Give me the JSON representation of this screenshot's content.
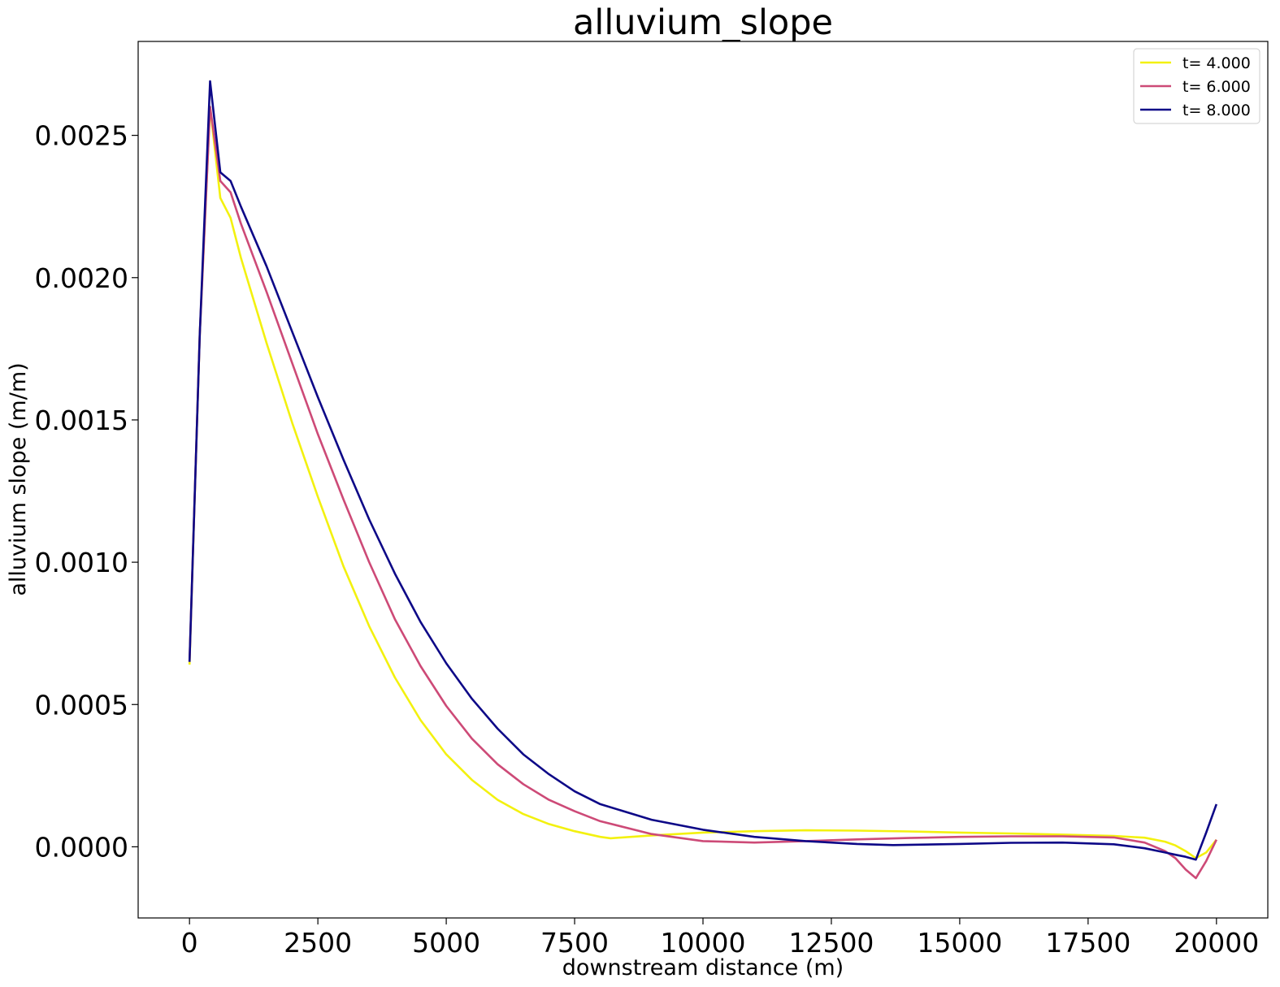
{
  "chart_data": {
    "type": "line",
    "title": "alluvium_slope",
    "xlabel": "downstream distance (m)",
    "ylabel": "alluvium slope (m/m)",
    "xlim": [
      -1000,
      21000
    ],
    "ylim": [
      -0.00025,
      0.00283
    ],
    "xticks": [
      0,
      2500,
      5000,
      7500,
      10000,
      12500,
      15000,
      17500,
      20000
    ],
    "xtick_labels": [
      "0",
      "2500",
      "5000",
      "7500",
      "10000",
      "12500",
      "15000",
      "17500",
      "20000"
    ],
    "yticks": [
      0.0,
      0.0005,
      0.001,
      0.0015,
      0.002,
      0.0025
    ],
    "ytick_labels": [
      "0.0000",
      "0.0005",
      "0.0010",
      "0.0015",
      "0.0020",
      "0.0025"
    ],
    "grid": false,
    "legend_position": "top-right",
    "series": [
      {
        "name": "t= 4.000",
        "color": "#f3f10f",
        "x": [
          0,
          200,
          400,
          600,
          800,
          1000,
          1500,
          2000,
          2500,
          3000,
          3500,
          4000,
          4500,
          5000,
          5500,
          6000,
          6500,
          7000,
          7500,
          8000,
          8200,
          9000,
          10000,
          11000,
          12000,
          13000,
          14000,
          15000,
          16000,
          17000,
          18000,
          18600,
          19000,
          19200,
          19400,
          19600,
          19800,
          20000
        ],
        "y": [
          0.00064,
          0.0018,
          0.0026,
          0.00228,
          0.00221,
          0.00207,
          0.00177,
          0.00149,
          0.00123,
          0.000985,
          0.000775,
          0.000595,
          0.000445,
          0.000325,
          0.000235,
          0.000165,
          0.000115,
          8e-05,
          5.5e-05,
          3.5e-05,
          3e-05,
          4e-05,
          5e-05,
          5.5e-05,
          5.8e-05,
          5.7e-05,
          5.4e-05,
          5e-05,
          4.7e-05,
          4.3e-05,
          3.8e-05,
          3.2e-05,
          1.8e-05,
          5e-06,
          -1.5e-05,
          -4e-05,
          -2e-05,
          2.5e-05
        ]
      },
      {
        "name": "t= 6.000",
        "color": "#cd4a77",
        "x": [
          0,
          200,
          400,
          600,
          800,
          1000,
          1500,
          2000,
          2500,
          3000,
          3500,
          4000,
          4500,
          5000,
          5500,
          6000,
          6500,
          7000,
          7500,
          8000,
          9000,
          10000,
          11000,
          12000,
          13000,
          14000,
          15000,
          16000,
          17000,
          18000,
          18600,
          19000,
          19200,
          19400,
          19600,
          19800,
          20000
        ],
        "y": [
          0.00065,
          0.0018,
          0.0026,
          0.00234,
          0.0023,
          0.00219,
          0.00195,
          0.0017,
          0.00145,
          0.00122,
          0.001,
          0.0008,
          0.000635,
          0.000495,
          0.00038,
          0.00029,
          0.00022,
          0.000165,
          0.000125,
          9e-05,
          4.5e-05,
          2e-05,
          1.5e-05,
          2e-05,
          2.6e-05,
          3.1e-05,
          3.5e-05,
          3.7e-05,
          3.7e-05,
          3.3e-05,
          1.5e-05,
          -1.5e-05,
          -4e-05,
          -8e-05,
          -0.00011,
          -5e-05,
          2.5e-05
        ]
      },
      {
        "name": "t= 8.000",
        "color": "#0d0887",
        "x": [
          0,
          200,
          400,
          600,
          800,
          1000,
          1500,
          2000,
          2500,
          3000,
          3500,
          4000,
          4500,
          5000,
          5500,
          6000,
          6500,
          7000,
          7500,
          8000,
          9000,
          10000,
          11000,
          12000,
          13000,
          13700,
          15000,
          16000,
          17000,
          18000,
          18600,
          19000,
          19200,
          19400,
          19600,
          19800,
          20000
        ],
        "y": [
          0.00065,
          0.0018,
          0.00269,
          0.00237,
          0.00234,
          0.00225,
          0.00204,
          0.00181,
          0.00158,
          0.00136,
          0.00115,
          0.00096,
          0.00079,
          0.000645,
          0.00052,
          0.000415,
          0.000325,
          0.000255,
          0.000195,
          0.00015,
          9.5e-05,
          6e-05,
          3.5e-05,
          2e-05,
          1e-05,
          6e-06,
          1e-05,
          1.4e-05,
          1.5e-05,
          9e-06,
          -5e-06,
          -2e-05,
          -2.8e-05,
          -3.5e-05,
          -4.5e-05,
          5e-05,
          0.00015
        ]
      }
    ]
  }
}
